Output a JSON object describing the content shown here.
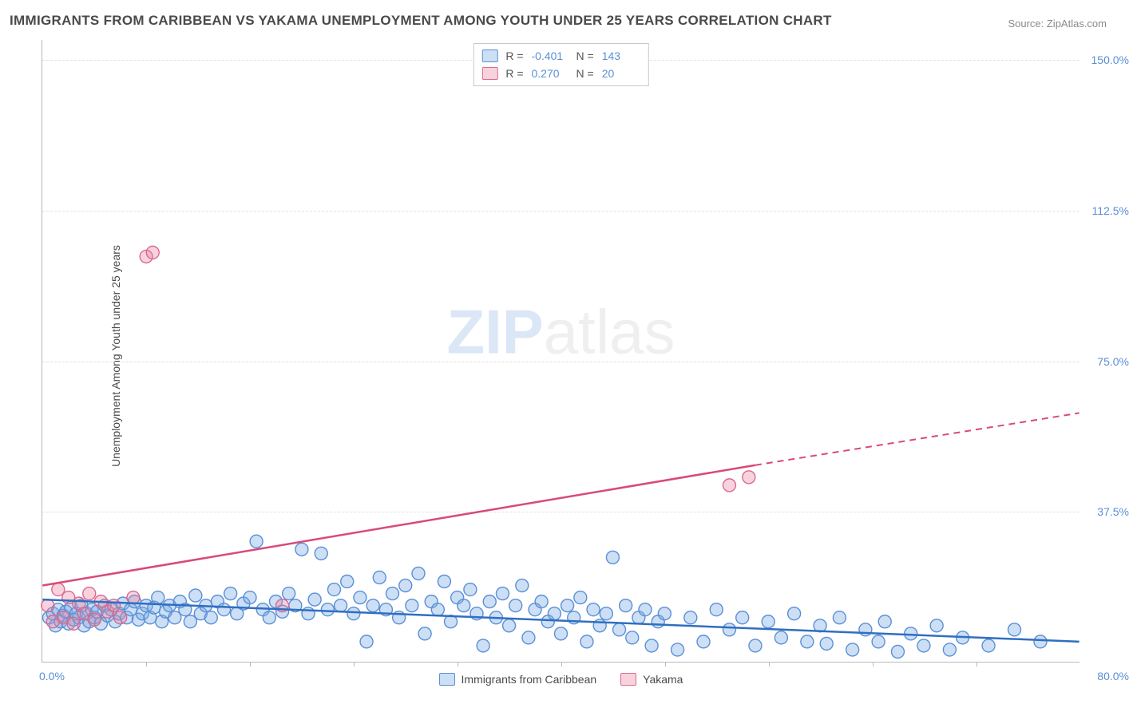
{
  "title": "IMMIGRANTS FROM CARIBBEAN VS YAKAMA UNEMPLOYMENT AMONG YOUTH UNDER 25 YEARS CORRELATION CHART",
  "source_prefix": "Source: ",
  "source_name": "ZipAtlas.com",
  "y_axis_label": "Unemployment Among Youth under 25 years",
  "watermark_a": "ZIP",
  "watermark_b": "atlas",
  "chart": {
    "type": "scatter+regression",
    "x_min": 0.0,
    "x_max": 80.0,
    "y_min": 0.0,
    "y_max": 155.0,
    "y_ticks": [
      37.5,
      75.0,
      112.5,
      150.0
    ],
    "y_tick_labels": [
      "37.5%",
      "75.0%",
      "112.5%",
      "150.0%"
    ],
    "x_tick_positions": [
      0,
      8,
      16,
      24,
      32,
      40,
      48,
      56,
      64,
      72,
      80
    ],
    "x_left_label": "0.0%",
    "x_right_label": "80.0%",
    "background": "#ffffff",
    "grid_color": "#e2e2e2",
    "axis_color": "#b9b9b9",
    "tick_label_color": "#5a8fd6",
    "series": {
      "caribbean": {
        "label": "Immigrants from Caribbean",
        "R": "-0.401",
        "N": "143",
        "fill": "rgba(120,170,230,0.38)",
        "stroke": "#5a8fd6",
        "line_color": "#2f6fc0",
        "marker_r": 8,
        "regression": {
          "x1": 0,
          "y1": 15.5,
          "x2": 80,
          "y2": 5.0
        },
        "points": [
          [
            0.5,
            11
          ],
          [
            0.8,
            12
          ],
          [
            1.0,
            9
          ],
          [
            1.2,
            13
          ],
          [
            1.4,
            10
          ],
          [
            1.6,
            11.5
          ],
          [
            1.8,
            12.5
          ],
          [
            2.0,
            9.5
          ],
          [
            2.2,
            13.5
          ],
          [
            2.4,
            10.5
          ],
          [
            2.6,
            12
          ],
          [
            2.8,
            11
          ],
          [
            3.0,
            14
          ],
          [
            3.2,
            9
          ],
          [
            3.4,
            12
          ],
          [
            3.6,
            10
          ],
          [
            3.8,
            13
          ],
          [
            4.0,
            11
          ],
          [
            4.2,
            12.5
          ],
          [
            4.5,
            9.5
          ],
          [
            4.8,
            14
          ],
          [
            5.0,
            11.5
          ],
          [
            5.3,
            13
          ],
          [
            5.6,
            10
          ],
          [
            5.9,
            12
          ],
          [
            6.2,
            14.5
          ],
          [
            6.5,
            11
          ],
          [
            6.8,
            13
          ],
          [
            7.1,
            15
          ],
          [
            7.4,
            10.5
          ],
          [
            7.7,
            12
          ],
          [
            8.0,
            14
          ],
          [
            8.3,
            11
          ],
          [
            8.6,
            13.5
          ],
          [
            8.9,
            16
          ],
          [
            9.2,
            10
          ],
          [
            9.5,
            12.5
          ],
          [
            9.8,
            14
          ],
          [
            10.2,
            11
          ],
          [
            10.6,
            15
          ],
          [
            11.0,
            13
          ],
          [
            11.4,
            10
          ],
          [
            11.8,
            16.5
          ],
          [
            12.2,
            12
          ],
          [
            12.6,
            14
          ],
          [
            13.0,
            11
          ],
          [
            13.5,
            15
          ],
          [
            14.0,
            13
          ],
          [
            14.5,
            17
          ],
          [
            15.0,
            12
          ],
          [
            15.5,
            14.5
          ],
          [
            16.0,
            16
          ],
          [
            16.5,
            30
          ],
          [
            17.0,
            13
          ],
          [
            17.5,
            11
          ],
          [
            18.0,
            15
          ],
          [
            18.5,
            12.5
          ],
          [
            19.0,
            17
          ],
          [
            19.5,
            14
          ],
          [
            20.0,
            28
          ],
          [
            20.5,
            12
          ],
          [
            21.0,
            15.5
          ],
          [
            21.5,
            27
          ],
          [
            22.0,
            13
          ],
          [
            22.5,
            18
          ],
          [
            23.0,
            14
          ],
          [
            23.5,
            20
          ],
          [
            24.0,
            12
          ],
          [
            24.5,
            16
          ],
          [
            25.0,
            5
          ],
          [
            25.5,
            14
          ],
          [
            26.0,
            21
          ],
          [
            26.5,
            13
          ],
          [
            27.0,
            17
          ],
          [
            27.5,
            11
          ],
          [
            28.0,
            19
          ],
          [
            28.5,
            14
          ],
          [
            29.0,
            22
          ],
          [
            29.5,
            7
          ],
          [
            30.0,
            15
          ],
          [
            30.5,
            13
          ],
          [
            31.0,
            20
          ],
          [
            31.5,
            10
          ],
          [
            32.0,
            16
          ],
          [
            32.5,
            14
          ],
          [
            33.0,
            18
          ],
          [
            33.5,
            12
          ],
          [
            34.0,
            4
          ],
          [
            34.5,
            15
          ],
          [
            35.0,
            11
          ],
          [
            35.5,
            17
          ],
          [
            36.0,
            9
          ],
          [
            36.5,
            14
          ],
          [
            37.0,
            19
          ],
          [
            37.5,
            6
          ],
          [
            38.0,
            13
          ],
          [
            38.5,
            15
          ],
          [
            39.0,
            10
          ],
          [
            39.5,
            12
          ],
          [
            40.0,
            7
          ],
          [
            40.5,
            14
          ],
          [
            41.0,
            11
          ],
          [
            41.5,
            16
          ],
          [
            42.0,
            5
          ],
          [
            42.5,
            13
          ],
          [
            43.0,
            9
          ],
          [
            43.5,
            12
          ],
          [
            44.0,
            26
          ],
          [
            44.5,
            8
          ],
          [
            45.0,
            14
          ],
          [
            45.5,
            6
          ],
          [
            46.0,
            11
          ],
          [
            46.5,
            13
          ],
          [
            47.0,
            4
          ],
          [
            47.5,
            10
          ],
          [
            48.0,
            12
          ],
          [
            49.0,
            3
          ],
          [
            50.0,
            11
          ],
          [
            51.0,
            5
          ],
          [
            52.0,
            13
          ],
          [
            53.0,
            8
          ],
          [
            54.0,
            11
          ],
          [
            55.0,
            4
          ],
          [
            56.0,
            10
          ],
          [
            57.0,
            6
          ],
          [
            58.0,
            12
          ],
          [
            59.0,
            5
          ],
          [
            60.0,
            9
          ],
          [
            60.5,
            4.5
          ],
          [
            61.5,
            11
          ],
          [
            62.5,
            3
          ],
          [
            63.5,
            8
          ],
          [
            64.5,
            5
          ],
          [
            65.0,
            10
          ],
          [
            66.0,
            2.5
          ],
          [
            67.0,
            7
          ],
          [
            68.0,
            4
          ],
          [
            69.0,
            9
          ],
          [
            70.0,
            3
          ],
          [
            71.0,
            6
          ],
          [
            73.0,
            4
          ],
          [
            75.0,
            8
          ],
          [
            77.0,
            5
          ]
        ]
      },
      "yakama": {
        "label": "Yakama",
        "R": "0.270",
        "N": "20",
        "fill": "rgba(235,130,160,0.35)",
        "stroke": "#d96a8f",
        "line_color": "#d94a76",
        "marker_r": 8,
        "regression_solid": {
          "x1": 0,
          "y1": 19,
          "x2": 55,
          "y2": 49
        },
        "regression_dashed": {
          "x1": 55,
          "y1": 49,
          "x2": 80,
          "y2": 62
        },
        "points": [
          [
            0.4,
            14
          ],
          [
            0.8,
            10
          ],
          [
            1.2,
            18
          ],
          [
            1.6,
            11
          ],
          [
            2.0,
            16
          ],
          [
            2.4,
            9.5
          ],
          [
            2.8,
            14.5
          ],
          [
            3.2,
            12
          ],
          [
            3.6,
            17
          ],
          [
            4.0,
            10.5
          ],
          [
            4.5,
            15
          ],
          [
            5.0,
            12.5
          ],
          [
            5.5,
            14
          ],
          [
            6.0,
            11
          ],
          [
            7.0,
            16
          ],
          [
            8.0,
            101
          ],
          [
            8.5,
            102
          ],
          [
            18.5,
            14
          ],
          [
            53.0,
            44
          ],
          [
            54.5,
            46
          ]
        ]
      }
    }
  },
  "legend_labels": {
    "R": "R =",
    "N": "N ="
  }
}
